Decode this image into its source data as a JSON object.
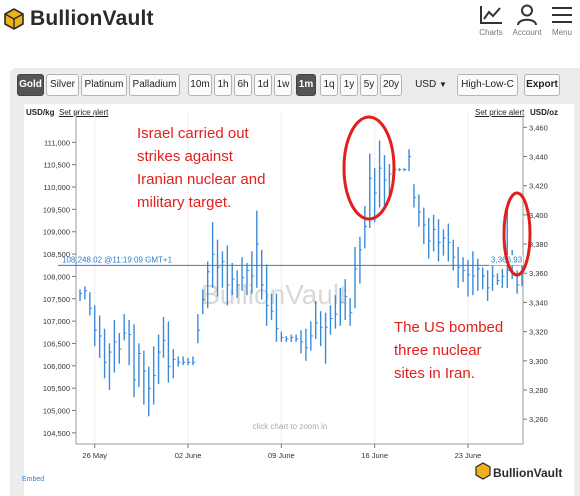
{
  "header": {
    "brand": "BullionVault",
    "nav": [
      {
        "id": "charts",
        "label": "Charts",
        "icon": "chart-icon"
      },
      {
        "id": "account",
        "label": "Account",
        "icon": "user-icon"
      },
      {
        "id": "menu",
        "label": "Menu",
        "icon": "hamburger-icon"
      }
    ]
  },
  "toolbar": {
    "metals": [
      "Gold",
      "Silver",
      "Platinum",
      "Palladium"
    ],
    "active_metal": "Gold",
    "ranges": [
      "10m",
      "1h",
      "6h",
      "1d",
      "1w",
      "1m",
      "1q",
      "1y",
      "5y",
      "20y"
    ],
    "active_range": "1m",
    "currency": "USD",
    "chart_style": "High-Low-C",
    "export_label": "Export"
  },
  "chart_header": {
    "left_unit": "USD/kg",
    "left_alert": "Set price alert",
    "right_alert": "Set price alert",
    "right_unit": "USD/oz"
  },
  "chart_data": {
    "type": "line",
    "style": "high-low",
    "x_labels": [
      "26 May",
      "02 June",
      "09 June",
      "16 June",
      "23 June"
    ],
    "left_axis": {
      "unit": "USD/kg",
      "ticks": [
        104500,
        105000,
        105500,
        106000,
        106500,
        107000,
        107500,
        108000,
        108500,
        109000,
        109500,
        110000,
        110500,
        111000
      ],
      "range": [
        104250,
        111500
      ]
    },
    "right_axis": {
      "unit": "USD/oz",
      "ticks": [
        3260,
        3280,
        3300,
        3320,
        3340,
        3360,
        3380,
        3400,
        3420,
        3440,
        3460
      ],
      "range": [
        3243,
        3465
      ]
    },
    "current_left": "108,248.02 @11:19:09 GMT+1",
    "current_right": "3,366.93",
    "current_value_kg": 108248.02,
    "current_value_oz": 3366.93,
    "watermark": "BullionVault",
    "hint": "click chart to zoom in",
    "footer_left": "Embed",
    "footer_brand": "BullionVault",
    "colors": {
      "series": "#3b8ad9",
      "current_line": "#2f7fd0",
      "annotation_text": "#e0201c",
      "annotation_circle": "#e0201c"
    },
    "series": [
      {
        "name": "",
        "values": [
          [
            3349,
            3341,
            3346
          ],
          [
            3351,
            3342,
            3348
          ],
          [
            3347,
            3331,
            3336
          ],
          [
            3338,
            3310,
            3321
          ],
          [
            3331,
            3302,
            3317
          ],
          [
            3322,
            3288,
            3299
          ],
          [
            3312,
            3280,
            3306
          ],
          [
            3328,
            3292,
            3313
          ],
          [
            3319,
            3298,
            3308
          ],
          [
            3332,
            3314,
            3319
          ],
          [
            3328,
            3297,
            3318
          ],
          [
            3325,
            3275,
            3287
          ],
          [
            3312,
            3282,
            3305
          ],
          [
            3307,
            3270,
            3293
          ],
          [
            3296,
            3262,
            3281
          ],
          [
            3310,
            3270,
            3290
          ],
          [
            3318,
            3284,
            3306
          ],
          [
            3330,
            3302,
            3314
          ],
          [
            3327,
            3285,
            3296
          ],
          [
            3308,
            3288,
            3301
          ],
          [
            3303,
            3296,
            3299
          ],
          [
            3303,
            3297,
            3299
          ],
          [
            3302,
            3297,
            3299
          ],
          [
            3303,
            3297,
            3299
          ],
          [
            3332,
            3312,
            3321
          ],
          [
            3349,
            3332,
            3342
          ],
          [
            3368,
            3336,
            3361
          ],
          [
            3395,
            3350,
            3373
          ],
          [
            3383,
            3344,
            3364
          ],
          [
            3375,
            3350,
            3368
          ],
          [
            3379,
            3338,
            3352
          ],
          [
            3367,
            3345,
            3356
          ],
          [
            3362,
            3343,
            3352
          ],
          [
            3371,
            3348,
            3357
          ],
          [
            3367,
            3345,
            3362
          ],
          [
            3375,
            3346,
            3358
          ],
          [
            3403,
            3350,
            3380
          ],
          [
            3376,
            3342,
            3352
          ],
          [
            3366,
            3324,
            3338
          ],
          [
            3346,
            3328,
            3334
          ],
          [
            3346,
            3313,
            3322
          ],
          [
            3320,
            3313,
            3316
          ],
          [
            3317,
            3313,
            3315
          ],
          [
            3318,
            3313,
            3316
          ],
          [
            3318,
            3313,
            3315
          ],
          [
            3321,
            3305,
            3313
          ],
          [
            3322,
            3300,
            3309
          ],
          [
            3327,
            3307,
            3317
          ],
          [
            3341,
            3315,
            3326
          ],
          [
            3334,
            3310,
            3323
          ],
          [
            3333,
            3298,
            3323
          ],
          [
            3338,
            3318,
            3329
          ],
          [
            3345,
            3322,
            3332
          ],
          [
            3350,
            3324,
            3340
          ],
          [
            3356,
            3328,
            3344
          ],
          [
            3343,
            3324,
            3333
          ],
          [
            3378,
            3336,
            3363
          ],
          [
            3385,
            3353,
            3376
          ],
          [
            3406,
            3377,
            3392
          ],
          [
            3442,
            3391,
            3425
          ],
          [
            3432,
            3395,
            3415
          ],
          [
            3451,
            3405,
            3432
          ],
          [
            3441,
            3405,
            3424
          ],
          [
            3435,
            3410,
            3428
          ],
          [
            3432,
            3430,
            3431
          ],
          [
            3432,
            3430,
            3431
          ],
          [
            3432,
            3430,
            3431
          ],
          [
            3445,
            3430,
            3440
          ],
          [
            3421,
            3405,
            3412
          ],
          [
            3414,
            3392,
            3402
          ],
          [
            3405,
            3380,
            3393
          ],
          [
            3398,
            3370,
            3382
          ],
          [
            3400,
            3375,
            3390
          ],
          [
            3397,
            3368,
            3381
          ],
          [
            3390,
            3372,
            3384
          ],
          [
            3394,
            3368,
            3381
          ],
          [
            3383,
            3362,
            3371
          ],
          [
            3378,
            3350,
            3364
          ],
          [
            3371,
            3354,
            3362
          ],
          [
            3369,
            3344,
            3359
          ],
          [
            3375,
            3345,
            3358
          ],
          [
            3370,
            3348,
            3363
          ],
          [
            3364,
            3349,
            3358
          ],
          [
            3362,
            3341,
            3350
          ],
          [
            3367,
            3348,
            3358
          ],
          [
            3360,
            3352,
            3355
          ],
          [
            3363,
            3350,
            3358
          ],
          [
            3403,
            3350,
            3362
          ],
          [
            3376,
            3356,
            3368
          ],
          [
            3362,
            3346,
            3352
          ],
          [
            3367,
            3351,
            3360
          ]
        ]
      }
    ]
  },
  "annotations": {
    "israel": [
      "Israel carried out",
      "strikes against",
      "Iranian nuclear and",
      "military target."
    ],
    "us": [
      "The US bombed",
      "three nuclear",
      "sites in Iran."
    ]
  }
}
